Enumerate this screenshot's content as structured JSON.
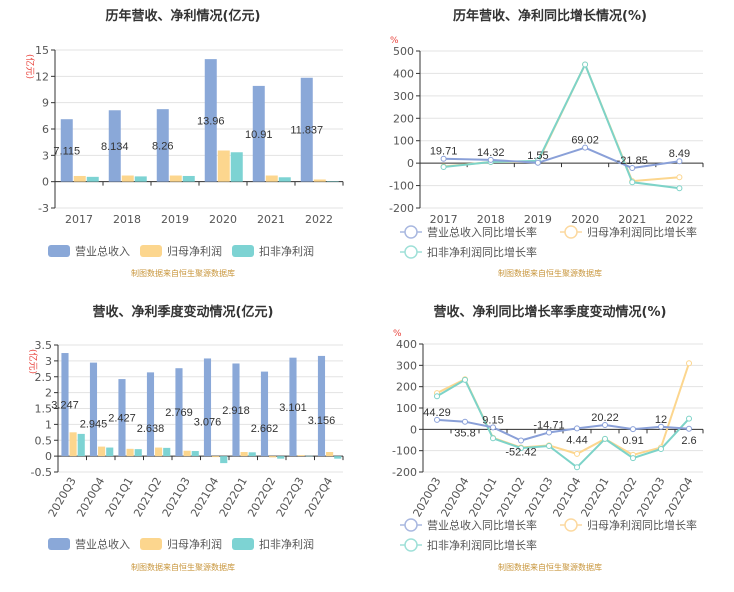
{
  "colors": {
    "revenue": "#8aa8d8",
    "net_profit": "#fcd68e",
    "deducted_profit": "#7dd3d3",
    "unit_label": "#e8433c",
    "source": "#c8963c"
  },
  "chart_data": [
    {
      "type": "bar",
      "title": "历年营收、净利情况(亿元)",
      "unit": "(亿元)",
      "categories": [
        "2017",
        "2018",
        "2019",
        "2020",
        "2021",
        "2022"
      ],
      "yticks": [
        "15",
        "12",
        "9",
        "6",
        "3",
        "0",
        "-3"
      ],
      "ylim": [
        -3,
        15
      ],
      "grid": true,
      "legend_position": "bottom",
      "series": [
        {
          "name": "营业总收入",
          "values": [
            7.115,
            8.134,
            8.26,
            13.96,
            10.91,
            11.837
          ],
          "labels": [
            "7.115",
            "8.134",
            "8.26",
            "13.96",
            "10.91",
            "11.837"
          ]
        },
        {
          "name": "归母净利润",
          "values": [
            0.65,
            0.7,
            0.7,
            3.55,
            0.7,
            0.25
          ]
        },
        {
          "name": "扣非净利润",
          "values": [
            0.55,
            0.6,
            0.65,
            3.35,
            0.5,
            0.05
          ]
        }
      ],
      "source": "制图数据来自恒生聚源数据库"
    },
    {
      "type": "line",
      "title": "历年营收、净利同比增长情况(%)",
      "unit": "%",
      "categories": [
        "2017",
        "2018",
        "2019",
        "2020",
        "2021",
        "2022"
      ],
      "yticks": [
        "500",
        "400",
        "300",
        "200",
        "100",
        "0",
        "-100",
        "-200"
      ],
      "ylim": [
        -200,
        500
      ],
      "grid": true,
      "legend_position": "bottom",
      "series": [
        {
          "name": "营业总收入同比增长率",
          "values": [
            19.71,
            14.32,
            1.55,
            69.02,
            -21.85,
            8.49
          ],
          "labels": [
            "19.71",
            "14.32",
            "1.55",
            "69.02",
            "-21.85",
            "8.49"
          ]
        },
        {
          "name": "归母净利润同比增长率",
          "values": [
            -15,
            5,
            5,
            440,
            -80,
            -63
          ]
        },
        {
          "name": "扣非净利润同比增长率",
          "values": [
            -17,
            5,
            10,
            440,
            -85,
            -112
          ]
        }
      ],
      "source": "制图数据来自恒生聚源数据库"
    },
    {
      "type": "bar",
      "title": "营收、净利季度变动情况(亿元)",
      "unit": "(亿元)",
      "categories": [
        "2020Q3",
        "2020Q4",
        "2021Q1",
        "2021Q2",
        "2021Q3",
        "2021Q4",
        "2022Q1",
        "2022Q2",
        "2022Q3",
        "2022Q4"
      ],
      "yticks": [
        "3.5",
        "3",
        "2.5",
        "2",
        "1.5",
        "1",
        "0.5",
        "0",
        "-0.5"
      ],
      "ylim": [
        -0.5,
        3.5
      ],
      "grid": true,
      "legend_position": "bottom",
      "series": [
        {
          "name": "营业总收入",
          "values": [
            3.247,
            2.945,
            2.427,
            2.638,
            2.769,
            3.076,
            2.918,
            2.662,
            3.101,
            3.156
          ],
          "labels": [
            "3.247",
            "2.945",
            "2.427",
            "2.638",
            "2.769",
            "3.076",
            "2.918",
            "2.662",
            "3.101",
            "3.156"
          ]
        },
        {
          "name": "归母净利润",
          "values": [
            0.75,
            0.3,
            0.23,
            0.27,
            0.17,
            -0.03,
            0.13,
            -0.04,
            0.03,
            0.13
          ]
        },
        {
          "name": "扣非净利润",
          "values": [
            0.7,
            0.27,
            0.22,
            0.26,
            0.16,
            -0.22,
            0.12,
            -0.08,
            0.01,
            -0.08
          ]
        }
      ],
      "source": "制图数据来自恒生聚源数据库"
    },
    {
      "type": "line",
      "title": "营收、净利同比增长率季度变动情况(%)",
      "unit": "%",
      "categories": [
        "2020Q3",
        "2020Q4",
        "2021Q1",
        "2021Q2",
        "2021Q3",
        "2021Q4",
        "2022Q1",
        "2022Q2",
        "2022Q3",
        "2022Q4"
      ],
      "yticks": [
        "400",
        "300",
        "200",
        "100",
        "0",
        "-100",
        "-200"
      ],
      "ylim": [
        -200,
        400
      ],
      "grid": true,
      "legend_position": "bottom",
      "series": [
        {
          "name": "营业总收入同比增长率",
          "values": [
            44.29,
            35.8,
            9.15,
            -52.42,
            -14.71,
            4.44,
            20.22,
            0.91,
            12,
            2.6
          ],
          "labels": [
            "44.29",
            "35.8",
            "9.15",
            "-52.42",
            "-14.71",
            "4.44",
            "20.22",
            "0.91",
            "12",
            "2.6"
          ]
        },
        {
          "name": "归母净利润同比增长率",
          "values": [
            170,
            235,
            -40,
            -85,
            -75,
            -115,
            -45,
            -120,
            -85,
            310
          ]
        },
        {
          "name": "扣非净利润同比增长率",
          "values": [
            155,
            232,
            -42,
            -88,
            -78,
            -178,
            -45,
            -135,
            -92,
            50
          ]
        }
      ],
      "source": "制图数据来自恒生聚源数据库"
    }
  ]
}
